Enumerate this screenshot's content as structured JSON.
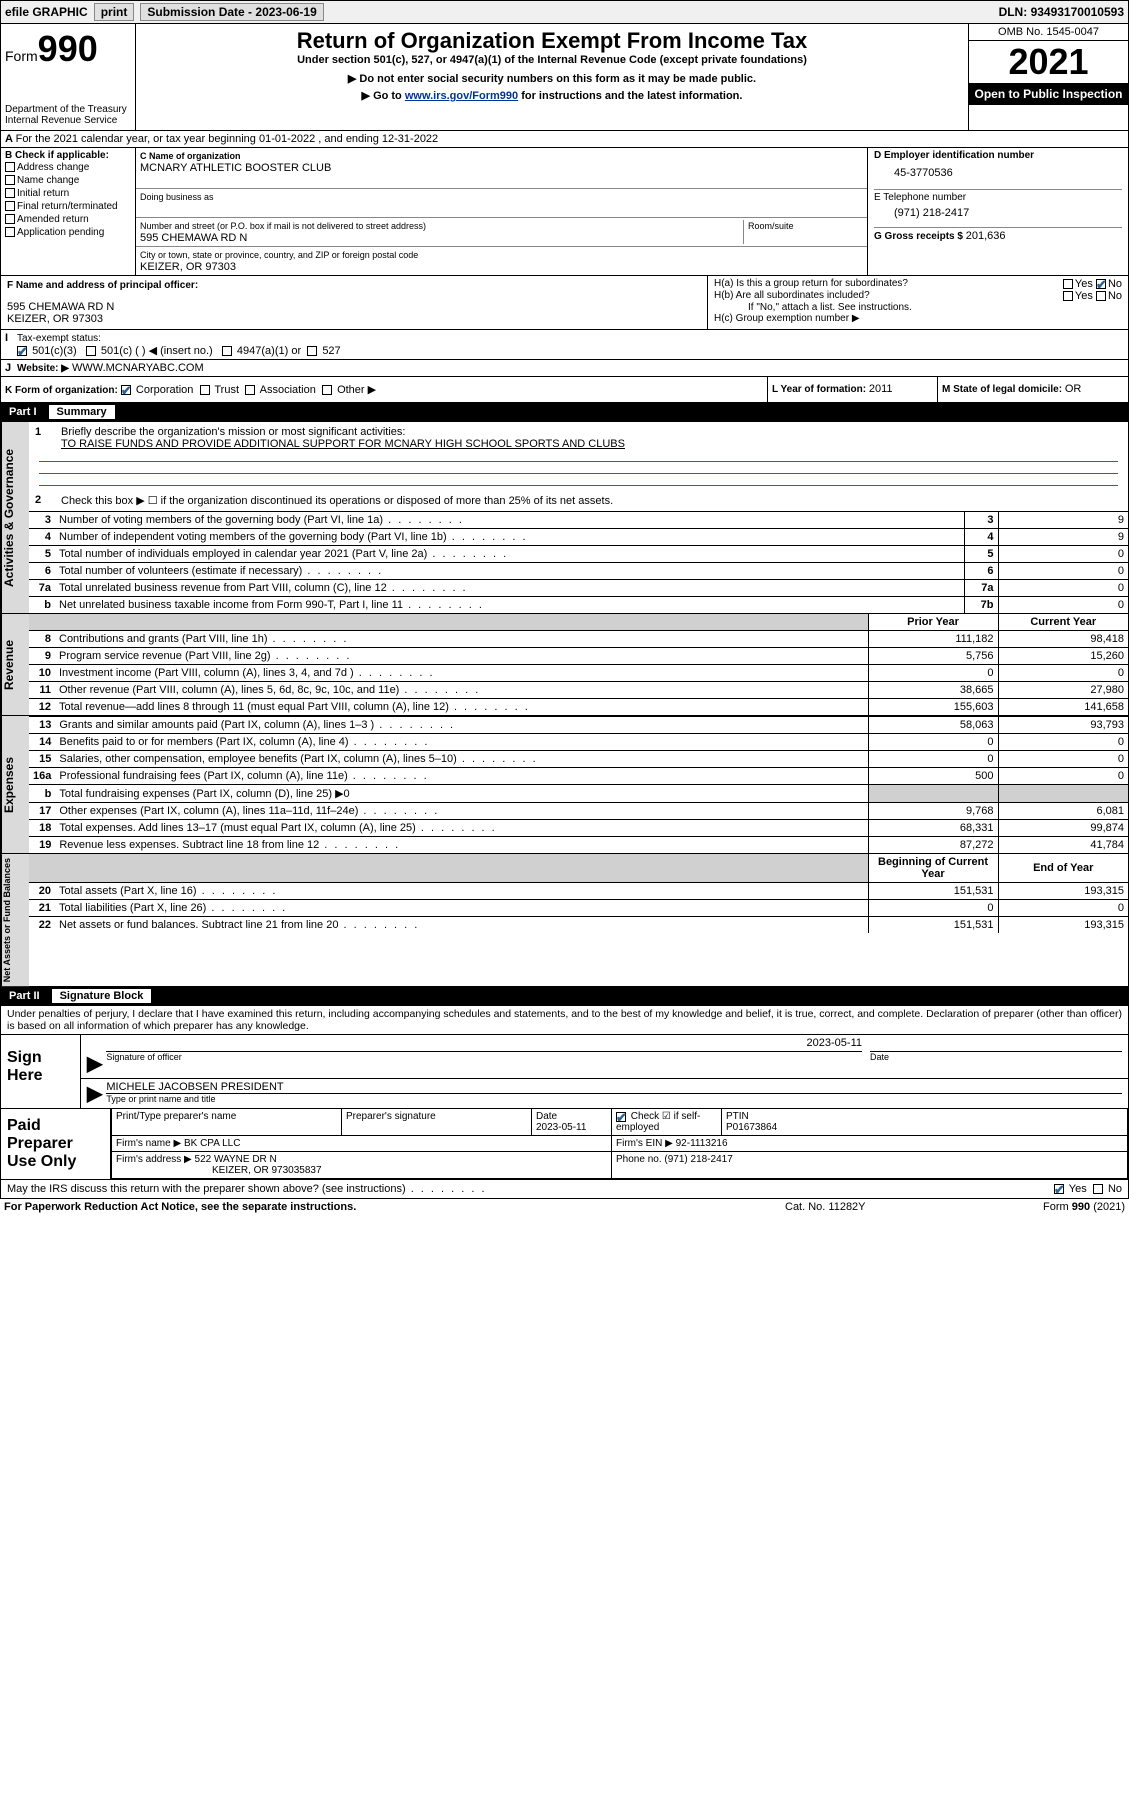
{
  "toolbar": {
    "efile": "efile GRAPHIC",
    "print": "print",
    "sub_label": "Submission Date - ",
    "sub_date": "2023-06-19",
    "dln_label": "DLN: ",
    "dln": "93493170010593"
  },
  "header": {
    "form_label": "Form",
    "form_num": "990",
    "dept": "Department of the Treasury",
    "irs": "Internal Revenue Service",
    "title": "Return of Organization Exempt From Income Tax",
    "subtitle": "Under section 501(c), 527, or 4947(a)(1) of the Internal Revenue Code (except private foundations)",
    "note1": "▶ Do not enter social security numbers on this form as it may be made public.",
    "note2_pre": "▶ Go to ",
    "note2_link": "www.irs.gov/Form990",
    "note2_post": " for instructions and the latest information.",
    "omb": "OMB No. 1545-0047",
    "year": "2021",
    "open": "Open to Public Inspection"
  },
  "line_a": "For the 2021 calendar year, or tax year beginning 01-01-2022   , and ending 12-31-2022",
  "section_b": {
    "label": "B Check if applicable:",
    "opts": [
      "Address change",
      "Name change",
      "Initial return",
      "Final return/terminated",
      "Amended return",
      "Application pending"
    ]
  },
  "section_c": {
    "label": "C Name of organization",
    "name": "MCNARY ATHLETIC BOOSTER CLUB",
    "dba_label": "Doing business as",
    "addr_label": "Number and street (or P.O. box if mail is not delivered to street address)",
    "room_label": "Room/suite",
    "addr": "595 CHEMAWA RD N",
    "city_label": "City or town, state or province, country, and ZIP or foreign postal code",
    "city": "KEIZER, OR  97303"
  },
  "section_d": {
    "label": "D Employer identification number",
    "val": "45-3770536"
  },
  "section_e": {
    "label": "E Telephone number",
    "val": "(971) 218-2417"
  },
  "section_g": {
    "label": "G Gross receipts $ ",
    "val": "201,636"
  },
  "section_f": {
    "label": "F Name and address of principal officer:",
    "addr1": "595 CHEMAWA RD N",
    "addr2": "KEIZER, OR  97303"
  },
  "section_h": {
    "ha": "H(a)  Is this a group return for subordinates?",
    "hb": "H(b)  Are all subordinates included?",
    "hb_note": "If \"No,\" attach a list. See instructions.",
    "hc": "H(c)  Group exemption number ▶"
  },
  "section_i": {
    "label": "Tax-exempt status:",
    "opts": [
      "501(c)(3)",
      "501(c) (  ) ◀ (insert no.)",
      "4947(a)(1) or",
      "527"
    ]
  },
  "section_j": {
    "label": "Website: ▶",
    "val": "WWW.MCNARYABC.COM"
  },
  "section_k": {
    "label": "K Form of organization:",
    "opts": [
      "Corporation",
      "Trust",
      "Association",
      "Other ▶"
    ]
  },
  "section_l": {
    "label": "L Year of formation: ",
    "val": "2011"
  },
  "section_m": {
    "label": "M State of legal domicile: ",
    "val": "OR"
  },
  "part1": {
    "num": "Part I",
    "title": "Summary",
    "q1": "Briefly describe the organization's mission or most significant activities:",
    "mission": "TO RAISE FUNDS AND PROVIDE ADDITIONAL SUPPORT FOR MCNARY HIGH SCHOOL SPORTS AND CLUBS",
    "q2": "Check this box ▶ ☐  if the organization discontinued its operations or disposed of more than 25% of its net assets.",
    "rows_gov": [
      {
        "no": "3",
        "desc": "Number of voting members of the governing body (Part VI, line 1a)",
        "ln": "3",
        "val": "9"
      },
      {
        "no": "4",
        "desc": "Number of independent voting members of the governing body (Part VI, line 1b)",
        "ln": "4",
        "val": "9"
      },
      {
        "no": "5",
        "desc": "Total number of individuals employed in calendar year 2021 (Part V, line 2a)",
        "ln": "5",
        "val": "0"
      },
      {
        "no": "6",
        "desc": "Total number of volunteers (estimate if necessary)",
        "ln": "6",
        "val": "0"
      },
      {
        "no": "7a",
        "desc": "Total unrelated business revenue from Part VIII, column (C), line 12",
        "ln": "7a",
        "val": "0"
      },
      {
        "no": "b",
        "desc": "Net unrelated business taxable income from Form 990-T, Part I, line 11",
        "ln": "7b",
        "val": "0"
      }
    ],
    "head_prior": "Prior Year",
    "head_curr": "Current Year",
    "rows_rev": [
      {
        "no": "8",
        "desc": "Contributions and grants (Part VIII, line 1h)",
        "prior": "111,182",
        "curr": "98,418"
      },
      {
        "no": "9",
        "desc": "Program service revenue (Part VIII, line 2g)",
        "prior": "5,756",
        "curr": "15,260"
      },
      {
        "no": "10",
        "desc": "Investment income (Part VIII, column (A), lines 3, 4, and 7d )",
        "prior": "0",
        "curr": "0"
      },
      {
        "no": "11",
        "desc": "Other revenue (Part VIII, column (A), lines 5, 6d, 8c, 9c, 10c, and 11e)",
        "prior": "38,665",
        "curr": "27,980"
      },
      {
        "no": "12",
        "desc": "Total revenue—add lines 8 through 11 (must equal Part VIII, column (A), line 12)",
        "prior": "155,603",
        "curr": "141,658"
      }
    ],
    "rows_exp": [
      {
        "no": "13",
        "desc": "Grants and similar amounts paid (Part IX, column (A), lines 1–3 )",
        "prior": "58,063",
        "curr": "93,793"
      },
      {
        "no": "14",
        "desc": "Benefits paid to or for members (Part IX, column (A), line 4)",
        "prior": "0",
        "curr": "0"
      },
      {
        "no": "15",
        "desc": "Salaries, other compensation, employee benefits (Part IX, column (A), lines 5–10)",
        "prior": "0",
        "curr": "0"
      },
      {
        "no": "16a",
        "desc": "Professional fundraising fees (Part IX, column (A), line 11e)",
        "prior": "500",
        "curr": "0"
      },
      {
        "no": "b",
        "desc": "Total fundraising expenses (Part IX, column (D), line 25) ▶0",
        "prior": "",
        "curr": "",
        "gray": true
      },
      {
        "no": "17",
        "desc": "Other expenses (Part IX, column (A), lines 11a–11d, 11f–24e)",
        "prior": "9,768",
        "curr": "6,081"
      },
      {
        "no": "18",
        "desc": "Total expenses. Add lines 13–17 (must equal Part IX, column (A), line 25)",
        "prior": "68,331",
        "curr": "99,874"
      },
      {
        "no": "19",
        "desc": "Revenue less expenses. Subtract line 18 from line 12",
        "prior": "87,272",
        "curr": "41,784"
      }
    ],
    "head_begin": "Beginning of Current Year",
    "head_end": "End of Year",
    "rows_net": [
      {
        "no": "20",
        "desc": "Total assets (Part X, line 16)",
        "prior": "151,531",
        "curr": "193,315"
      },
      {
        "no": "21",
        "desc": "Total liabilities (Part X, line 26)",
        "prior": "0",
        "curr": "0"
      },
      {
        "no": "22",
        "desc": "Net assets or fund balances. Subtract line 21 from line 20",
        "prior": "151,531",
        "curr": "193,315"
      }
    ],
    "vside": [
      "Activities & Governance",
      "Revenue",
      "Expenses",
      "Net Assets or Fund Balances"
    ]
  },
  "part2": {
    "num": "Part II",
    "title": "Signature Block",
    "decl": "Under penalties of perjury, I declare that I have examined this return, including accompanying schedules and statements, and to the best of my knowledge and belief, it is true, correct, and complete. Declaration of preparer (other than officer) is based on all information of which preparer has any knowledge.",
    "sign_here": "Sign Here",
    "sig_officer": "Signature of officer",
    "sig_date": "2023-05-11",
    "date_label": "Date",
    "officer_name": "MICHELE JACOBSEN PRESIDENT",
    "officer_sub": "Type or print name and title",
    "paid": "Paid Preparer Use Only",
    "prep_cols": [
      "Print/Type preparer's name",
      "Preparer's signature",
      "Date",
      "",
      "PTIN"
    ],
    "prep_date": "2023-05-11",
    "prep_check": "Check ☑ if self-employed",
    "ptin": "P01673864",
    "firm_name_label": "Firm's name    ▶",
    "firm_name": "BK CPA LLC",
    "firm_ein_label": "Firm's EIN ▶",
    "firm_ein": "92-1113216",
    "firm_addr_label": "Firm's address ▶",
    "firm_addr1": "522 WAYNE DR N",
    "firm_addr2": "KEIZER, OR  973035837",
    "phone_label": "Phone no.",
    "phone": "(971) 218-2417",
    "discuss": "May the IRS discuss this return with the preparer shown above? (see instructions)"
  },
  "footer": {
    "left": "For Paperwork Reduction Act Notice, see the separate instructions.",
    "mid": "Cat. No. 11282Y",
    "right": "Form 990 (2021)"
  },
  "yn": {
    "yes": "Yes",
    "no": "No"
  }
}
